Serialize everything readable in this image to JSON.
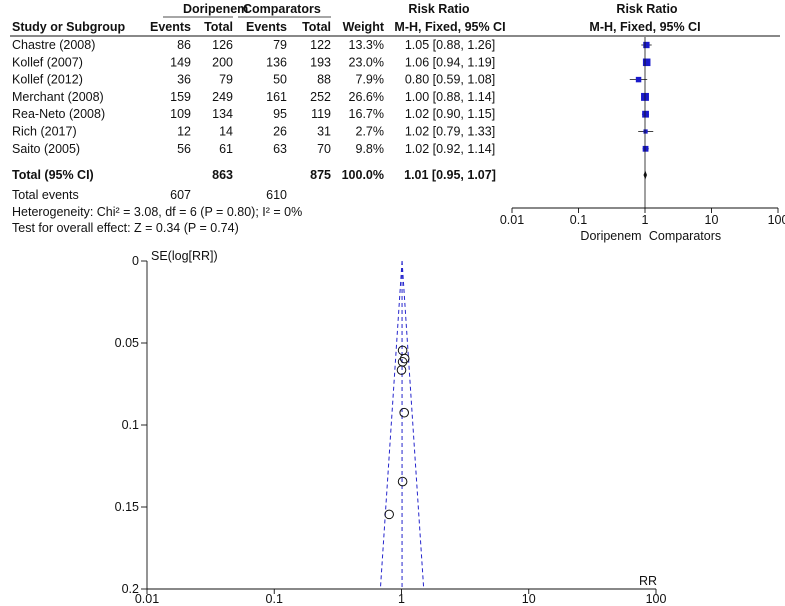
{
  "forest": {
    "group_headers": {
      "experimental": "Doripenem",
      "control": "Comparators",
      "effect": "Risk Ratio",
      "plot": "Risk Ratio"
    },
    "col_headers": {
      "study": "Study or Subgroup",
      "e_events": "Events",
      "e_total": "Total",
      "c_events": "Events",
      "c_total": "Total",
      "weight": "Weight",
      "effect_method": "M-H, Fixed, 95% CI",
      "plot_method": "M-H, Fixed, 95% CI"
    },
    "studies": [
      {
        "name": "Chastre (2008)",
        "e_events": "86",
        "e_total": "126",
        "c_events": "79",
        "c_total": "122",
        "weight": "13.3%",
        "ci_text": "1.05 [0.88, 1.26]",
        "rr": 1.05,
        "lo": 0.88,
        "hi": 1.26,
        "w": 13.3
      },
      {
        "name": "Kollef (2007)",
        "e_events": "149",
        "e_total": "200",
        "c_events": "136",
        "c_total": "193",
        "weight": "23.0%",
        "ci_text": "1.06 [0.94, 1.19]",
        "rr": 1.06,
        "lo": 0.94,
        "hi": 1.19,
        "w": 23.0
      },
      {
        "name": "Kollef (2012)",
        "e_events": "36",
        "e_total": "79",
        "c_events": "50",
        "c_total": "88",
        "weight": "7.9%",
        "ci_text": "0.80 [0.59, 1.08]",
        "rr": 0.8,
        "lo": 0.59,
        "hi": 1.08,
        "w": 7.9
      },
      {
        "name": "Merchant (2008)",
        "e_events": "159",
        "e_total": "249",
        "c_events": "161",
        "c_total": "252",
        "weight": "26.6%",
        "ci_text": "1.00 [0.88, 1.14]",
        "rr": 1.0,
        "lo": 0.88,
        "hi": 1.14,
        "w": 26.6
      },
      {
        "name": "Rea-Neto (2008)",
        "e_events": "109",
        "e_total": "134",
        "c_events": "95",
        "c_total": "119",
        "weight": "16.7%",
        "ci_text": "1.02 [0.90, 1.15]",
        "rr": 1.02,
        "lo": 0.9,
        "hi": 1.15,
        "w": 16.7
      },
      {
        "name": "Rich (2017)",
        "e_events": "12",
        "e_total": "14",
        "c_events": "26",
        "c_total": "31",
        "weight": "2.7%",
        "ci_text": "1.02 [0.79, 1.33]",
        "rr": 1.02,
        "lo": 0.79,
        "hi": 1.33,
        "w": 2.7
      },
      {
        "name": "Saito (2005)",
        "e_events": "56",
        "e_total": "61",
        "c_events": "63",
        "c_total": "70",
        "weight": "9.8%",
        "ci_text": "1.02 [0.92, 1.14]",
        "rr": 1.02,
        "lo": 0.92,
        "hi": 1.14,
        "w": 9.8
      }
    ],
    "total": {
      "name": "Total (95% CI)",
      "e_total": "863",
      "c_total": "875",
      "weight": "100.0%",
      "ci_text": "1.01 [0.95, 1.07]",
      "rr": 1.01,
      "lo": 0.95,
      "hi": 1.07
    },
    "total_events": {
      "label": "Total events",
      "e_events": "607",
      "c_events": "610"
    },
    "heterogeneity": "Heterogeneity: Chi² = 3.08, df = 6 (P = 0.80); I² = 0%",
    "overall_effect": "Test for overall effect: Z = 0.34 (P = 0.74)",
    "axis": {
      "ticks": [
        "0.01",
        "0.1",
        "1",
        "10",
        "100"
      ],
      "favours_left": "Doripenem",
      "favours_right": "Comparators"
    },
    "marker_color": "#1a1acc"
  },
  "funnel": {
    "ylabel": "SE(log[RR])",
    "xlabel": "RR",
    "yticks": [
      "0",
      "0.05",
      "0.1",
      "0.15",
      "0.2"
    ],
    "xticks": [
      "0.01",
      "0.1",
      "1",
      "10",
      "100"
    ],
    "line_color": "#2424cc"
  },
  "chart_data": [
    {
      "type": "scatter",
      "subtype": "forest-plot",
      "x_scale": "log",
      "xlim": [
        0.01,
        100
      ],
      "categories": [
        "Chastre (2008)",
        "Kollef (2007)",
        "Kollef (2012)",
        "Merchant (2008)",
        "Rea-Neto (2008)",
        "Rich (2017)",
        "Saito (2005)",
        "Total (95% CI)"
      ],
      "series": [
        {
          "name": "",
          "values": [
            1.05,
            1.06,
            0.8,
            1.0,
            1.02,
            1.02,
            1.02,
            1.01
          ]
        }
      ],
      "ci_lower": [
        0.88,
        0.94,
        0.59,
        0.88,
        0.9,
        0.79,
        0.92,
        0.95
      ],
      "ci_upper": [
        1.26,
        1.19,
        1.08,
        1.14,
        1.15,
        1.33,
        1.14,
        1.07
      ],
      "weights": [
        13.3,
        23.0,
        7.9,
        26.6,
        16.7,
        2.7,
        9.8,
        100.0
      ]
    },
    {
      "type": "scatter",
      "subtype": "funnel-plot",
      "x_scale": "log",
      "xlim": [
        0.01,
        100
      ],
      "ylim": [
        0.2,
        0
      ],
      "xlabel": "RR",
      "ylabel": "SE(log[RR])",
      "pooled_rr": 1.01,
      "points": [
        {
          "x": 1.05,
          "y": 0.0925
        },
        {
          "x": 1.06,
          "y": 0.0595
        },
        {
          "x": 0.8,
          "y": 0.1545
        },
        {
          "x": 1.0,
          "y": 0.0665
        },
        {
          "x": 1.02,
          "y": 0.0615
        },
        {
          "x": 1.02,
          "y": 0.1345
        },
        {
          "x": 1.02,
          "y": 0.0545
        }
      ]
    }
  ]
}
